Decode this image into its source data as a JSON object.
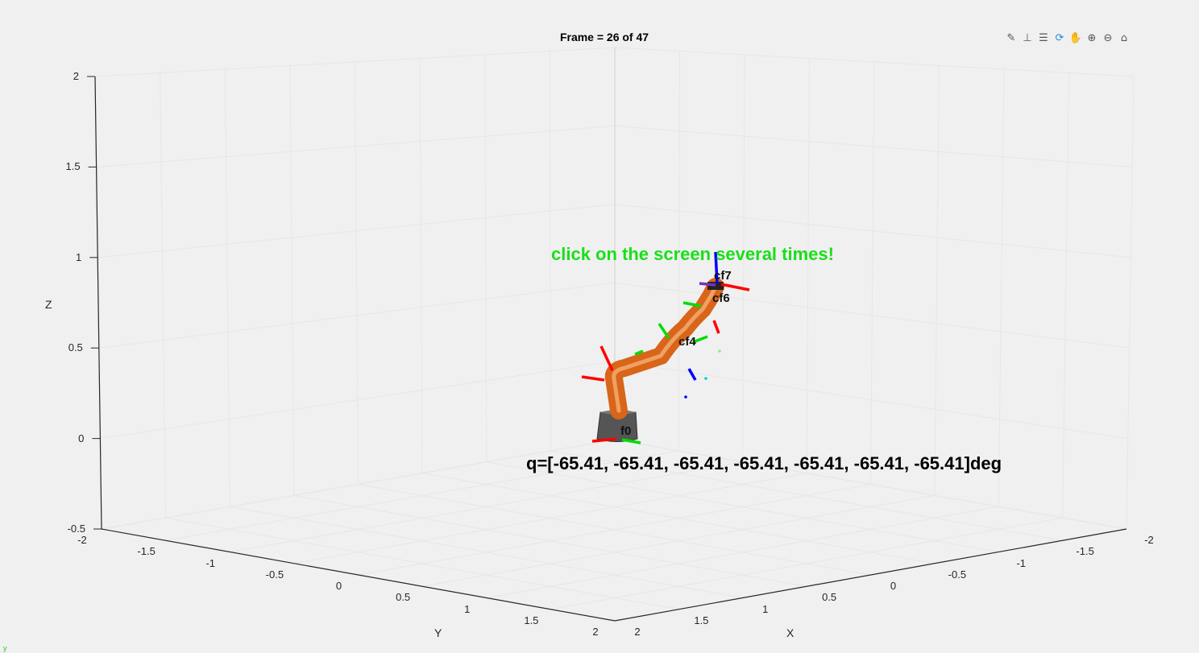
{
  "figure": {
    "title": "Frame = 26 of 47",
    "message": "click on the screen several times!",
    "joint_readout": "q=[-65.41, -65.41, -65.41, -65.41, -65.41, -65.41, -65.41]deg",
    "corner_mark": "y"
  },
  "toolbar": {
    "buttons": [
      {
        "name": "brush-icon",
        "glyph": "✎"
      },
      {
        "name": "data-tips-icon",
        "glyph": "⊥"
      },
      {
        "name": "legend-icon",
        "glyph": "☰"
      },
      {
        "name": "rotate-3d-icon",
        "glyph": "⟳"
      },
      {
        "name": "pan-icon",
        "glyph": "✋"
      },
      {
        "name": "zoom-in-icon",
        "glyph": "⊕"
      },
      {
        "name": "zoom-out-icon",
        "glyph": "⊖"
      },
      {
        "name": "home-icon",
        "glyph": "⌂"
      }
    ]
  },
  "axes": {
    "z_label": "Z",
    "y_label": "Y",
    "x_label": "X",
    "z_ticks": [
      "2",
      "1.5",
      "1",
      "0.5",
      "0",
      "-0.5"
    ],
    "y_ticks": [
      "-2",
      "-1.5",
      "-1",
      "-0.5",
      "0",
      "0.5",
      "1",
      "1.5",
      "2"
    ],
    "x_ticks": [
      "-2",
      "-1.5",
      "-1",
      "-0.5",
      "0",
      "0.5",
      "1",
      "1.5",
      "2"
    ]
  },
  "frame_labels": [
    {
      "text": "cf7"
    },
    {
      "text": "cf6"
    },
    {
      "text": "cf4"
    },
    {
      "text": "f0"
    }
  ],
  "colors": {
    "robot": "#d8651a",
    "base": "#555555",
    "x_axis": "#ff0000",
    "y_axis": "#00dd00",
    "z_axis": "#0000ff",
    "message": "#18e018"
  }
}
